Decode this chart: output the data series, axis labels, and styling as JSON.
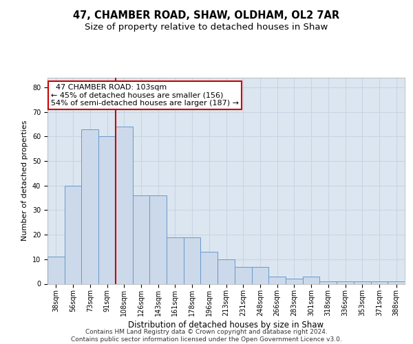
{
  "title": "47, CHAMBER ROAD, SHAW, OLDHAM, OL2 7AR",
  "subtitle": "Size of property relative to detached houses in Shaw",
  "xlabel": "Distribution of detached houses by size in Shaw",
  "ylabel": "Number of detached properties",
  "categories": [
    "38sqm",
    "56sqm",
    "73sqm",
    "91sqm",
    "108sqm",
    "126sqm",
    "143sqm",
    "161sqm",
    "178sqm",
    "196sqm",
    "213sqm",
    "231sqm",
    "248sqm",
    "266sqm",
    "283sqm",
    "301sqm",
    "318sqm",
    "336sqm",
    "353sqm",
    "371sqm",
    "388sqm"
  ],
  "values": [
    11,
    40,
    63,
    60,
    64,
    36,
    36,
    19,
    19,
    13,
    10,
    7,
    7,
    3,
    2,
    3,
    1,
    1,
    1,
    1,
    1
  ],
  "bar_color": "#ccd9ea",
  "bar_edge_color": "#6699cc",
  "redline_index": 4,
  "annotation_line1": "  47 CHAMBER ROAD: 103sqm",
  "annotation_line2": "← 45% of detached houses are smaller (156)",
  "annotation_line3": "54% of semi-detached houses are larger (187) →",
  "annotation_box_facecolor": "#ffffff",
  "annotation_box_edgecolor": "#cc0000",
  "ylim": [
    0,
    84
  ],
  "yticks": [
    0,
    10,
    20,
    30,
    40,
    50,
    60,
    70,
    80
  ],
  "grid_color": "#c8d4e3",
  "background_color": "#dce6f0",
  "footer_line1": "Contains HM Land Registry data © Crown copyright and database right 2024.",
  "footer_line2": "Contains public sector information licensed under the Open Government Licence v3.0.",
  "title_fontsize": 10.5,
  "subtitle_fontsize": 9.5,
  "xlabel_fontsize": 8.5,
  "ylabel_fontsize": 8,
  "tick_fontsize": 7,
  "annotation_fontsize": 8,
  "footer_fontsize": 6.5
}
